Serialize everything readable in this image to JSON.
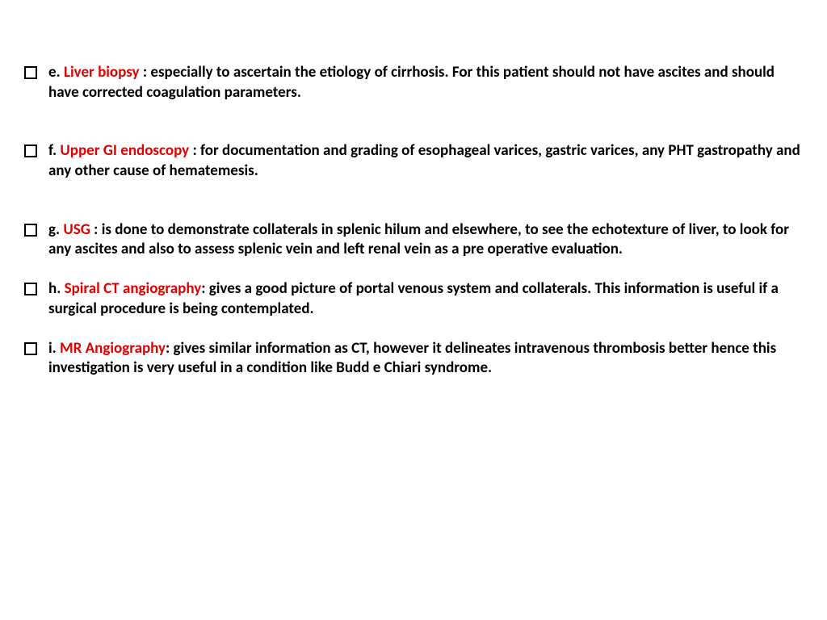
{
  "slide": {
    "background_color": "#ffffff",
    "text_color": "#000000",
    "highlight_color": "#e00000",
    "font_family": "Calibri, Arial, sans-serif",
    "base_fontsize": 19,
    "font_weight": 700,
    "bullet_style": "hollow-square",
    "items": [
      {
        "ordinal": "e.",
        "term": "Liver biopsy",
        "desc": " : especially to ascertain the etiology of cirrhosis. For this patient should not have ascites and should have corrected coagulation parameters.",
        "gap": "large"
      },
      {
        "ordinal": "f.",
        "term": "Upper GI endoscopy",
        "desc": " : for documentation and grading of esophageal varices, gastric varices, any PHT gastropathy and any other cause of hematemesis.",
        "gap": "large"
      },
      {
        "ordinal": "g.",
        "term": "USG",
        "desc": " : is done to demonstrate collaterals in splenic hilum and elsewhere, to see the echotexture of liver, to look for any ascites and also to assess splenic vein and left renal vein as a pre operative evaluation.",
        "gap": "tight"
      },
      {
        "ordinal": "h.",
        "term": "Spiral CT angiography",
        "desc": ": gives a good picture of portal venous system and collaterals. This information is useful if a surgical procedure is being contemplated.",
        "gap": "tight"
      },
      {
        "ordinal": "i.",
        "term": "MR Angiography",
        "desc": ": gives similar information as CT, however it delineates intravenous thrombosis better hence this investigation is very useful in a condition like Budd e Chiari syndrome.",
        "gap": "last"
      }
    ]
  }
}
